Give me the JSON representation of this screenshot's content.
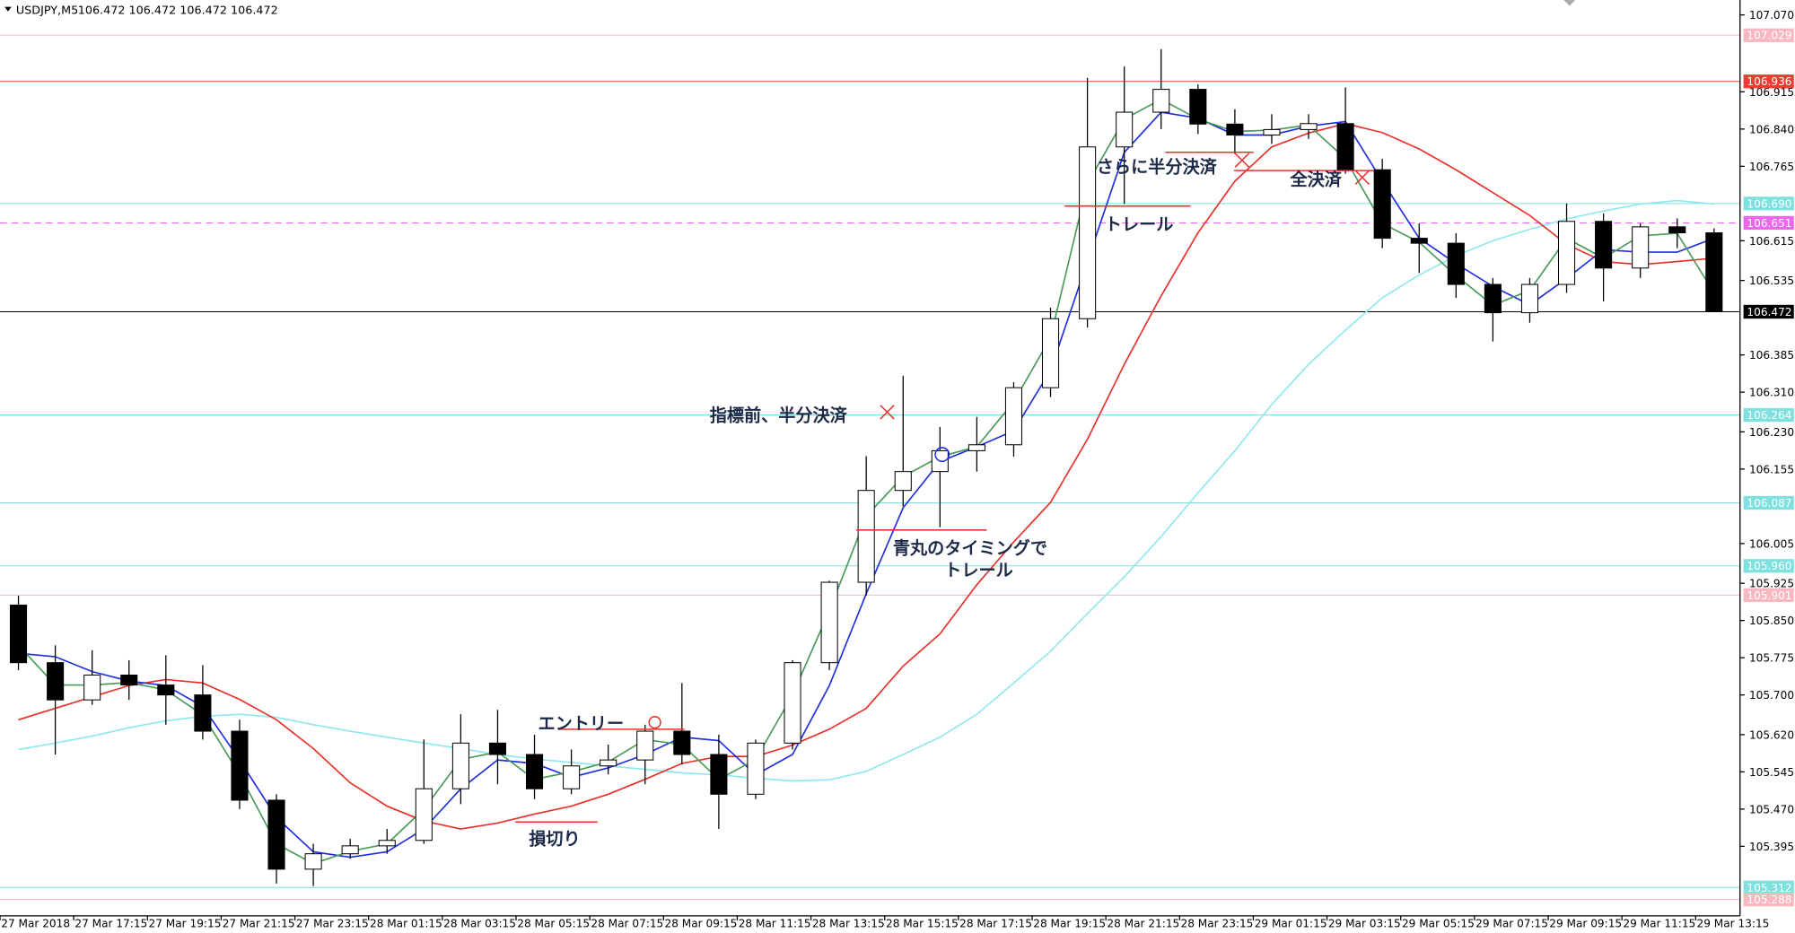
{
  "chart_data": {
    "type": "candlestick",
    "title": "USDJPY,M5",
    "subtitle": "106.472 106.472 106.472 106.472",
    "categories": [
      "27 Mar 2018",
      null,
      "27 Mar 17:15",
      null,
      "27 Mar 19:15",
      null,
      "27 Mar 21:15",
      null,
      "27 Mar 23:15",
      null,
      "28 Mar 01:15",
      null,
      "28 Mar 03:15",
      null,
      "28 Mar 05:15",
      null,
      "28 Mar 07:15",
      null,
      "28 Mar 09:15",
      null,
      "28 Mar 11:15",
      null,
      "28 Mar 13:15",
      null,
      "28 Mar 15:15",
      null,
      "28 Mar 17:15",
      null,
      "28 Mar 19:15",
      null,
      "28 Mar 21:15",
      null,
      "28 Mar 23:15",
      null,
      "29 Mar 01:15",
      null,
      "29 Mar 03:15",
      null,
      "29 Mar 05:15",
      null,
      "29 Mar 07:15",
      null,
      "29 Mar 09:15",
      null,
      "29 Mar 11:15",
      null,
      "29 Mar 13:15"
    ],
    "open": [
      105.881,
      105.765,
      105.69,
      105.74,
      105.72,
      105.7,
      105.627,
      105.488,
      105.349,
      105.38,
      105.396,
      105.407,
      105.511,
      105.603,
      105.58,
      105.511,
      105.557,
      105.569,
      105.627,
      105.58,
      105.5,
      105.603,
      105.765,
      105.927,
      106.112,
      106.15,
      106.192,
      106.204,
      106.319,
      106.458,
      106.804,
      106.874,
      106.92,
      106.85,
      106.828,
      106.839,
      106.851,
      106.758,
      106.62,
      106.61,
      106.527,
      106.47,
      106.527,
      106.654,
      106.56,
      106.643,
      106.631
    ],
    "high": [
      105.9,
      105.8,
      105.79,
      105.77,
      105.78,
      105.76,
      105.65,
      105.5,
      105.4,
      105.41,
      105.43,
      105.61,
      105.661,
      105.67,
      105.62,
      105.59,
      105.6,
      105.64,
      105.724,
      105.62,
      105.61,
      105.77,
      105.93,
      106.181,
      106.343,
      106.24,
      106.26,
      106.33,
      106.48,
      106.943,
      106.966,
      107.001,
      106.93,
      106.88,
      106.87,
      106.87,
      106.924,
      106.78,
      106.65,
      106.63,
      106.54,
      106.54,
      106.69,
      106.67,
      106.65,
      106.66,
      106.64
    ],
    "low": [
      105.75,
      105.58,
      105.68,
      105.69,
      105.64,
      105.61,
      105.47,
      105.32,
      105.315,
      105.37,
      105.38,
      105.4,
      105.48,
      105.52,
      105.49,
      105.5,
      105.54,
      105.52,
      105.56,
      105.43,
      105.49,
      105.59,
      105.75,
      105.9,
      106.08,
      106.038,
      106.15,
      106.18,
      106.3,
      106.44,
      106.689,
      106.84,
      106.83,
      106.79,
      106.81,
      106.82,
      106.75,
      106.6,
      106.55,
      106.5,
      106.412,
      106.45,
      106.51,
      106.493,
      106.54,
      106.6,
      106.472
    ],
    "close": [
      105.765,
      105.69,
      105.74,
      105.72,
      105.7,
      105.627,
      105.488,
      105.349,
      105.38,
      105.396,
      105.407,
      105.511,
      105.603,
      105.58,
      105.511,
      105.557,
      105.569,
      105.627,
      105.58,
      105.5,
      105.603,
      105.765,
      105.927,
      106.112,
      106.15,
      106.192,
      106.204,
      106.319,
      106.458,
      106.804,
      106.874,
      106.92,
      106.85,
      106.828,
      106.839,
      106.851,
      106.758,
      106.62,
      106.61,
      106.527,
      106.47,
      106.527,
      106.654,
      106.56,
      106.643,
      106.631,
      106.472
    ],
    "up_color": "#ffffff",
    "down_color": "#000000",
    "series": [
      {
        "color": "#8fe8ee",
        "values": [
          105.59,
          105.603,
          105.617,
          105.634,
          105.648,
          105.657,
          105.661,
          105.655,
          105.64,
          105.627,
          105.615,
          105.603,
          105.592,
          105.58,
          105.571,
          105.564,
          105.557,
          105.55,
          105.543,
          105.539,
          105.532,
          105.527,
          105.529,
          105.546,
          105.58,
          105.615,
          105.661,
          105.724,
          105.788,
          105.864,
          105.938,
          106.019,
          106.107,
          106.192,
          106.285,
          106.366,
          106.435,
          106.5,
          106.546,
          106.585,
          106.615,
          106.638,
          106.659,
          106.675,
          106.689,
          106.696,
          106.689
        ]
      },
      {
        "color": "#e8302a",
        "values": [
          105.65,
          105.673,
          105.696,
          105.719,
          105.731,
          105.724,
          105.691,
          105.65,
          105.592,
          105.523,
          105.476,
          105.446,
          105.43,
          105.442,
          105.46,
          105.476,
          105.5,
          105.53,
          105.562,
          105.576,
          105.576,
          105.599,
          105.631,
          105.673,
          105.758,
          105.823,
          105.922,
          106.008,
          106.088,
          106.215,
          106.366,
          106.504,
          106.631,
          106.735,
          106.804,
          106.832,
          106.851,
          106.833,
          106.8,
          106.758,
          106.712,
          106.666,
          106.608,
          106.573,
          106.567,
          106.573,
          106.58
        ]
      },
      {
        "color": "#1f2ee0",
        "values": [
          105.784,
          105.777,
          105.747,
          105.728,
          105.719,
          105.677,
          105.569,
          105.453,
          105.384,
          105.373,
          105.384,
          105.43,
          105.511,
          105.569,
          105.562,
          105.534,
          105.553,
          105.58,
          105.615,
          105.608,
          105.539,
          105.58,
          105.719,
          105.904,
          106.077,
          106.17,
          106.2,
          106.232,
          106.354,
          106.573,
          106.793,
          106.874,
          106.862,
          106.828,
          106.828,
          106.846,
          106.855,
          106.735,
          106.62,
          106.569,
          106.523,
          106.486,
          106.539,
          106.597,
          106.592,
          106.592,
          106.62
        ]
      },
      {
        "color": "#4a9a5a",
        "values": [
          105.8,
          105.72,
          105.72,
          105.725,
          105.71,
          105.66,
          105.54,
          105.4,
          105.36,
          105.385,
          105.4,
          105.47,
          105.57,
          105.585,
          105.53,
          105.545,
          105.565,
          105.61,
          105.6,
          105.53,
          105.57,
          105.7,
          105.87,
          106.06,
          106.14,
          106.18,
          106.2,
          106.29,
          106.42,
          106.73,
          106.86,
          106.9,
          106.86,
          106.835,
          106.838,
          106.848,
          106.78,
          106.65,
          106.612,
          106.545,
          106.485,
          106.515,
          106.62,
          106.58,
          106.625,
          106.63,
          106.51
        ]
      }
    ],
    "ylim": [
      105.255,
      107.1
    ],
    "yticks": [
      {
        "value": 107.07,
        "label": "107.070"
      },
      {
        "value": 106.915,
        "label": "106.915"
      },
      {
        "value": 106.84,
        "label": "106.840"
      },
      {
        "value": 106.765,
        "label": "106.765"
      },
      {
        "value": 106.615,
        "label": "106.615"
      },
      {
        "value": 106.535,
        "label": "106.535"
      },
      {
        "value": 106.385,
        "label": "106.385"
      },
      {
        "value": 106.31,
        "label": "106.310"
      },
      {
        "value": 106.23,
        "label": "106.230"
      },
      {
        "value": 106.155,
        "label": "106.155"
      },
      {
        "value": 106.005,
        "label": "106.005"
      },
      {
        "value": 105.925,
        "label": "105.925"
      },
      {
        "value": 105.85,
        "label": "105.850"
      },
      {
        "value": 105.775,
        "label": "105.775"
      },
      {
        "value": 105.7,
        "label": "105.700"
      },
      {
        "value": 105.62,
        "label": "105.620"
      },
      {
        "value": 105.545,
        "label": "105.545"
      },
      {
        "value": 105.47,
        "label": "105.470"
      },
      {
        "value": 105.395,
        "label": "105.395"
      }
    ],
    "grid": false,
    "levels": [
      {
        "value": 107.029,
        "label": "107.029",
        "color": "#f7b8c0"
      },
      {
        "value": 106.936,
        "label": "106.936",
        "color": "#ee3b33"
      },
      {
        "value": 106.69,
        "label": "106.690",
        "color": "#7fe0e0"
      },
      {
        "value": 106.651,
        "label": "106.651",
        "color": "#ee66ee",
        "dash": true
      },
      {
        "value": 106.472,
        "label": "106.472",
        "color": "#000000"
      },
      {
        "value": 106.264,
        "label": "106.264",
        "color": "#7fe0e0"
      },
      {
        "value": 106.087,
        "label": "106.087",
        "color": "#7fe0e0"
      },
      {
        "value": 105.96,
        "label": "105.960",
        "color": "#7fe0e0"
      },
      {
        "value": 105.901,
        "label": "105.901",
        "color": "#f7b8c0"
      },
      {
        "value": 105.312,
        "label": "105.312",
        "color": "#7fe0e0"
      },
      {
        "value": 105.288,
        "label": "105.288",
        "color": "#f7b8c0"
      }
    ],
    "annotations": [
      "エントリー",
      "損切り",
      "指標前、半分決済",
      "青丸のタイミングで",
      "トレール",
      "さらに半分決済",
      "トレール",
      "全決済"
    ]
  }
}
